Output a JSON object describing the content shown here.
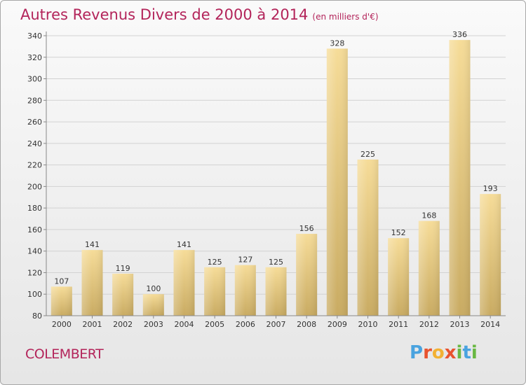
{
  "title": "Autres Revenus Divers de 2000 à 2014",
  "unit_note": "(en milliers d'€)",
  "commune": "COLEMBERT",
  "logo_letters": [
    "P",
    "r",
    "o",
    "x",
    "i",
    "t",
    "i"
  ],
  "logo_colors": [
    "#4aa3df",
    "#e8532f",
    "#f2b134",
    "#e8532f",
    "#69b843",
    "#4aa3df",
    "#69b843"
  ],
  "chart_data": {
    "type": "bar",
    "categories": [
      "2000",
      "2001",
      "2002",
      "2003",
      "2004",
      "2005",
      "2006",
      "2007",
      "2008",
      "2009",
      "2010",
      "2011",
      "2012",
      "2013",
      "2014"
    ],
    "values": [
      107,
      141,
      119,
      100,
      141,
      125,
      127,
      125,
      156,
      328,
      225,
      152,
      168,
      336,
      193
    ],
    "ylim": [
      80,
      340
    ],
    "yticks": [
      80,
      100,
      120,
      140,
      160,
      180,
      200,
      220,
      240,
      260,
      280,
      300,
      320,
      340
    ],
    "grid": true,
    "bar_color": "#e5c77a",
    "title": "Autres Revenus Divers de 2000 à 2014",
    "xlabel": "",
    "ylabel": ""
  }
}
